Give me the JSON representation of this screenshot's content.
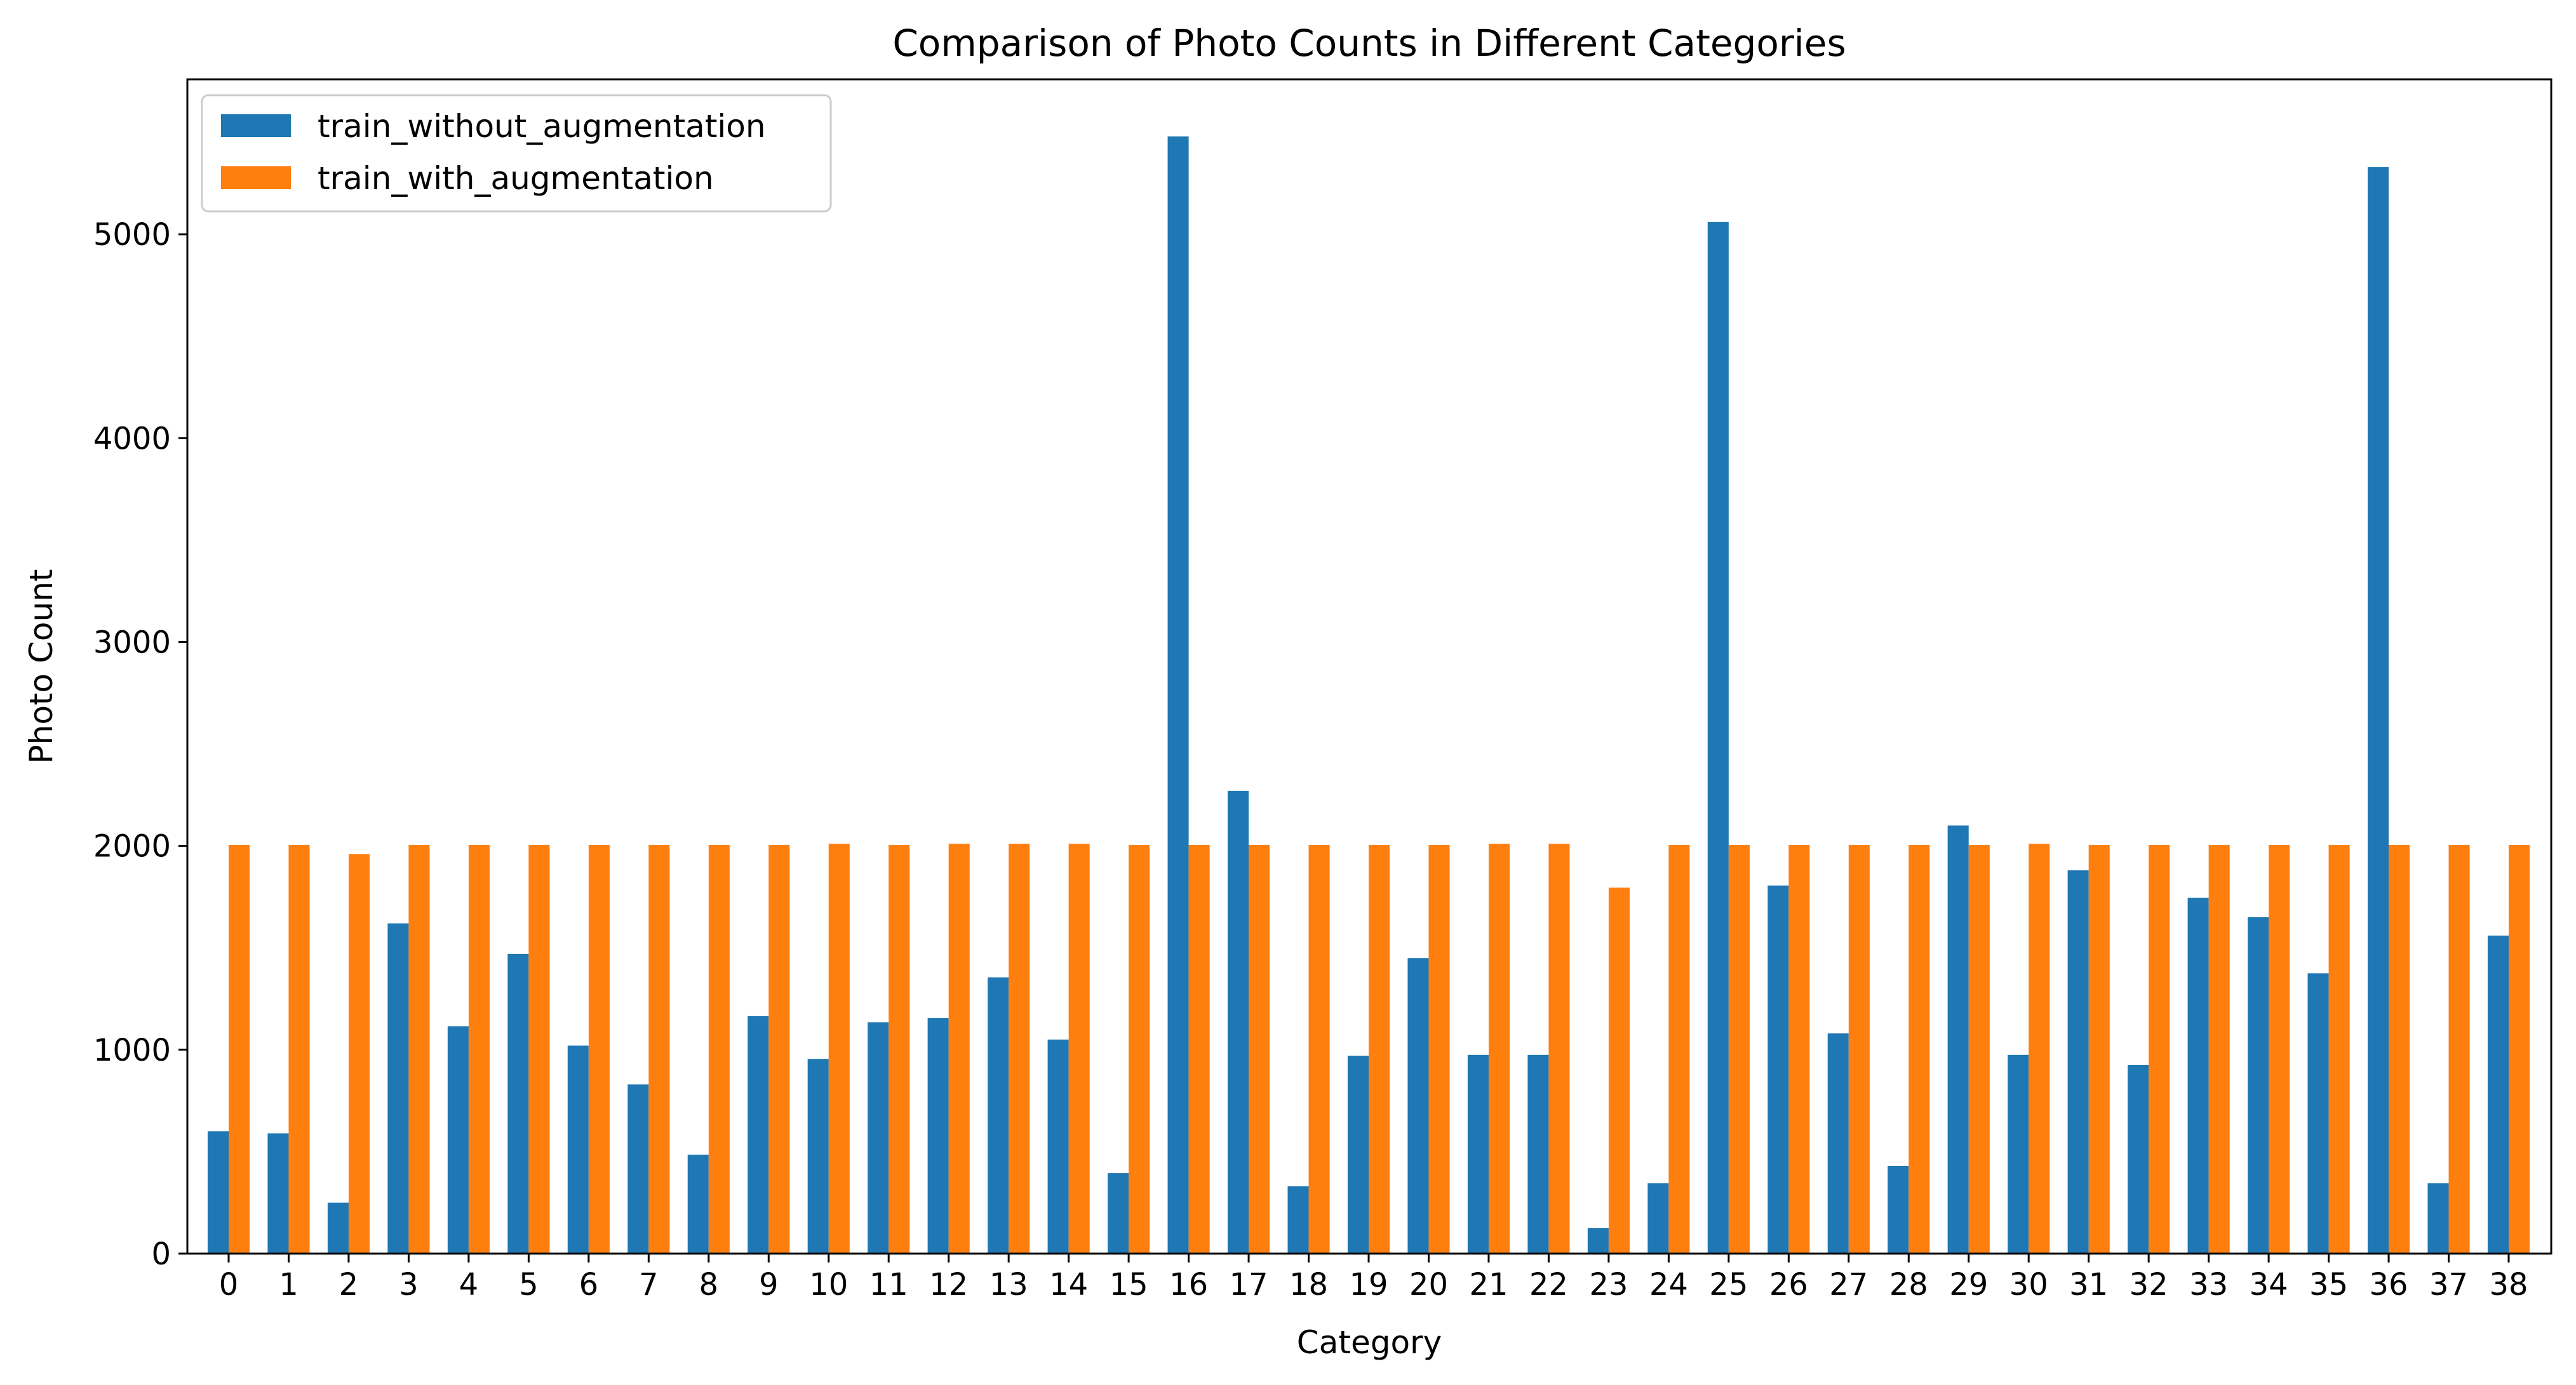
{
  "chart_data": {
    "type": "bar",
    "title": "Comparison of Photo Counts in Different Categories",
    "xlabel": "Category",
    "ylabel": "Photo Count",
    "categories": [
      "0",
      "1",
      "2",
      "3",
      "4",
      "5",
      "6",
      "7",
      "8",
      "9",
      "10",
      "11",
      "12",
      "13",
      "14",
      "15",
      "16",
      "17",
      "18",
      "19",
      "20",
      "21",
      "22",
      "23",
      "24",
      "25",
      "26",
      "27",
      "28",
      "29",
      "30",
      "31",
      "32",
      "33",
      "34",
      "35",
      "36",
      "37",
      "38"
    ],
    "series": [
      {
        "name": "train_without_augmentation",
        "color": "#1f77b4",
        "values": [
          600,
          590,
          250,
          1620,
          1115,
          1470,
          1020,
          830,
          485,
          1165,
          955,
          1135,
          1155,
          1355,
          1050,
          395,
          5480,
          2270,
          330,
          970,
          1450,
          975,
          975,
          125,
          345,
          5060,
          1805,
          1080,
          430,
          2100,
          975,
          1880,
          925,
          1745,
          1650,
          1375,
          5330,
          345,
          1560
        ]
      },
      {
        "name": "train_with_augmentation",
        "color": "#ff7f0e",
        "values": [
          2005,
          2005,
          1960,
          2005,
          2005,
          2005,
          2005,
          2005,
          2005,
          2005,
          2010,
          2005,
          2010,
          2010,
          2010,
          2005,
          2005,
          2005,
          2005,
          2005,
          2005,
          2010,
          2010,
          1795,
          2005,
          2005,
          2005,
          2005,
          2005,
          2005,
          2010,
          2005,
          2005,
          2005,
          2005,
          2005,
          2005,
          2005,
          2005
        ]
      }
    ],
    "ylim": [
      0,
      5760
    ],
    "yticks": [
      0,
      1000,
      2000,
      3000,
      4000,
      5000
    ],
    "grid": false,
    "legend_position": "top-left"
  }
}
